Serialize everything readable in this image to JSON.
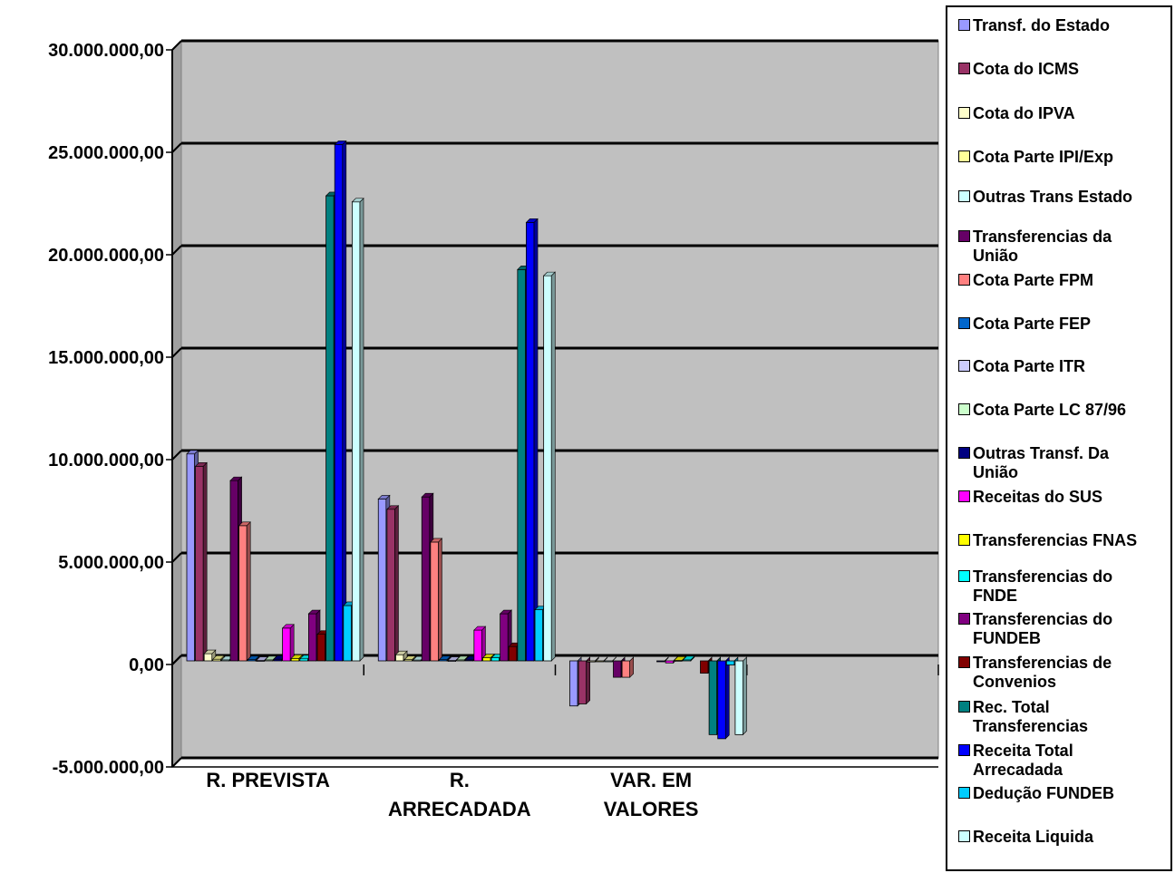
{
  "chart_data": {
    "type": "bar",
    "title": "",
    "xlabel": "",
    "ylabel": "",
    "ylim": [
      -5000000,
      30000000
    ],
    "yticks": [
      {
        "value": -5000000,
        "label": "-5.000.000,00"
      },
      {
        "value": 0,
        "label": "0,00"
      },
      {
        "value": 5000000,
        "label": "5.000.000,00"
      },
      {
        "value": 10000000,
        "label": "10.000.000,00"
      },
      {
        "value": 15000000,
        "label": "15.000.000,00"
      },
      {
        "value": 20000000,
        "label": "20.000.000,00"
      },
      {
        "value": 25000000,
        "label": "25.000.000,00"
      },
      {
        "value": 30000000,
        "label": "30.000.000,00"
      }
    ],
    "categories": [
      "R. PREVISTA",
      "R.\nARRECADADA",
      "VAR. EM\nVALORES",
      ""
    ],
    "grid": true,
    "legend_position": "right",
    "plot_background": "#c0c0c0",
    "series": [
      {
        "name": "Transf. do Estado",
        "color": "#9999ff",
        "values": [
          10100000,
          7900000,
          -2200000,
          null
        ]
      },
      {
        "name": "Cota do ICMS",
        "color": "#993366",
        "values": [
          9500000,
          7400000,
          -2100000,
          null
        ]
      },
      {
        "name": "Cota do IPVA",
        "color": "#ffffcc",
        "values": [
          350000,
          300000,
          -50000,
          null
        ]
      },
      {
        "name": "Cota Parte IPI/Exp",
        "color": "#ffff99",
        "values": [
          80000,
          60000,
          -20000,
          null
        ]
      },
      {
        "name": "Outras Trans Estado",
        "color": "#ccffff",
        "values": [
          50000,
          40000,
          -10000,
          null
        ]
      },
      {
        "name": "Transferencias da\nUnião",
        "color": "#660066",
        "values": [
          8800000,
          8000000,
          -800000,
          null
        ]
      },
      {
        "name": "Cota Parte FPM",
        "color": "#ff8080",
        "values": [
          6600000,
          5800000,
          -800000,
          null
        ]
      },
      {
        "name": "Cota Parte FEP",
        "color": "#0066cc",
        "values": [
          60000,
          60000,
          0,
          null
        ]
      },
      {
        "name": "Cota Parte ITR",
        "color": "#ccccff",
        "values": [
          20000,
          20000,
          0,
          null
        ]
      },
      {
        "name": "Cota Parte LC 87/96",
        "color": "#ccffcc",
        "values": [
          50000,
          50000,
          0,
          null
        ]
      },
      {
        "name": "Outras Transf. Da\nUnião",
        "color": "#000080",
        "values": [
          80000,
          50000,
          -30000,
          null
        ]
      },
      {
        "name": "Receitas do SUS",
        "color": "#ff00ff",
        "values": [
          1600000,
          1500000,
          -100000,
          null
        ]
      },
      {
        "name": "Transferencias FNAS",
        "color": "#ffff00",
        "values": [
          120000,
          150000,
          30000,
          null
        ]
      },
      {
        "name": "Transferencias do\nFNDE",
        "color": "#00ffff",
        "values": [
          100000,
          150000,
          50000,
          null
        ]
      },
      {
        "name": "Transferencias do\nFUNDEB",
        "color": "#800080",
        "values": [
          2300000,
          2300000,
          0,
          null
        ]
      },
      {
        "name": "Transferencias de\nConvenios",
        "color": "#800000",
        "values": [
          1300000,
          700000,
          -600000,
          null
        ]
      },
      {
        "name": "Rec. Total\nTransferencias",
        "color": "#008080",
        "values": [
          22700000,
          19100000,
          -3600000,
          null
        ]
      },
      {
        "name": "Receita Total\nArrecadada",
        "color": "#0000ff",
        "values": [
          25200000,
          21400000,
          -3800000,
          null
        ]
      },
      {
        "name": "Dedução FUNDEB",
        "color": "#00ccff",
        "values": [
          2700000,
          2500000,
          -200000,
          null
        ]
      },
      {
        "name": "Receita Liquida",
        "color": "#ccffff",
        "values": [
          22400000,
          18800000,
          -3600000,
          null
        ]
      }
    ]
  }
}
